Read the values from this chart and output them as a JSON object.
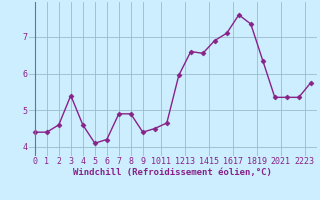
{
  "x": [
    0,
    1,
    2,
    3,
    4,
    5,
    6,
    7,
    8,
    9,
    10,
    11,
    12,
    13,
    14,
    15,
    16,
    17,
    18,
    19,
    20,
    21,
    22,
    23
  ],
  "y": [
    4.4,
    4.4,
    4.6,
    5.4,
    4.6,
    4.1,
    4.2,
    4.9,
    4.9,
    4.4,
    4.5,
    4.65,
    5.95,
    6.6,
    6.55,
    6.9,
    7.1,
    7.6,
    7.35,
    6.35,
    5.35,
    5.35,
    5.35,
    5.75
  ],
  "line_color": "#882288",
  "marker": "D",
  "marker_size": 2.5,
  "linewidth": 1.0,
  "bg_color": "#cceeff",
  "grid_color": "#99bbcc",
  "xlabel": "Windchill (Refroidissement éolien,°C)",
  "xlabel_color": "#882288",
  "xlabel_fontsize": 6.5,
  "tick_color": "#882288",
  "tick_fontsize": 6.0,
  "yticks": [
    4,
    5,
    6,
    7
  ],
  "xtick_labels": [
    "0",
    "1",
    "2",
    "3",
    "4",
    "5",
    "6",
    "7",
    "8",
    "9",
    "1011",
    "1213",
    "1415",
    "1617",
    "1819",
    "2021",
    "2223"
  ],
  "xlim": [
    -0.5,
    23.5
  ],
  "ylim": [
    3.75,
    7.95
  ]
}
